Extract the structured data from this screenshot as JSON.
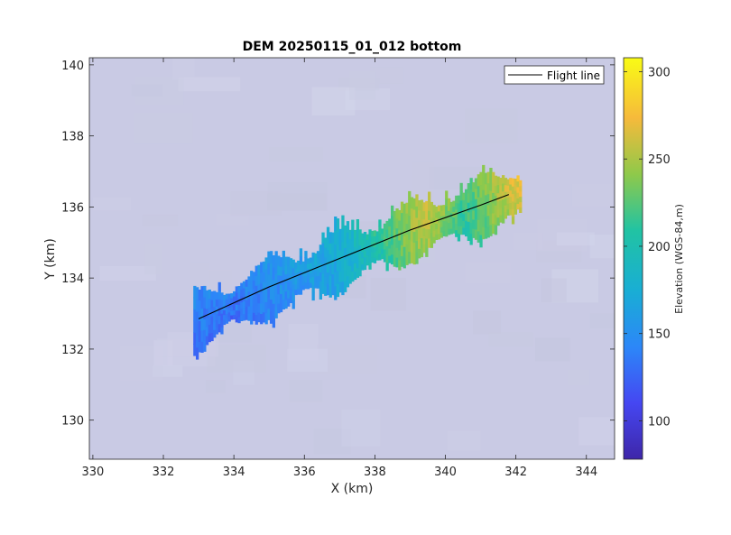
{
  "chart_data": {
    "type": "heatmap",
    "title": "DEM 20250115_01_012 bottom",
    "xlabel": "X (km)",
    "ylabel": "Y (km)",
    "xlim": [
      329.9,
      344.8
    ],
    "ylim": [
      128.9,
      140.2
    ],
    "x_ticks": [
      330,
      332,
      334,
      336,
      338,
      340,
      342,
      344
    ],
    "y_ticks": [
      130,
      132,
      134,
      136,
      138,
      140
    ],
    "grid": false,
    "background_color": "#c9cae4",
    "colorbar": {
      "label": "Elevation (WGS-84,m)",
      "range": [
        78,
        308
      ],
      "ticks": [
        100,
        150,
        200,
        250,
        300
      ],
      "colormap": "parula"
    },
    "legend": {
      "placement": "top-right",
      "entries": [
        "Flight line"
      ]
    },
    "series": [
      {
        "name": "Flight line",
        "type": "line",
        "color": "#000000",
        "x": [
          333.0,
          335.0,
          337.0,
          339.0,
          341.0,
          341.8
        ],
        "y": [
          132.85,
          133.75,
          134.55,
          135.35,
          136.05,
          136.35
        ]
      }
    ],
    "swath": {
      "centerline": {
        "x": [
          333.0,
          335.0,
          337.0,
          339.0,
          341.0,
          341.8
        ],
        "y": [
          132.85,
          133.75,
          134.55,
          135.35,
          136.05,
          136.35
        ]
      },
      "elevation_profile": {
        "x": [
          333.0,
          334.0,
          335.0,
          336.0,
          337.0,
          337.5,
          338.0,
          338.5,
          339.0,
          339.5,
          340.0,
          340.5,
          341.0,
          341.5,
          342.0
        ],
        "elevation": [
          140,
          135,
          148,
          160,
          175,
          190,
          205,
          225,
          245,
          255,
          235,
          215,
          230,
          250,
          265
        ]
      }
    }
  }
}
